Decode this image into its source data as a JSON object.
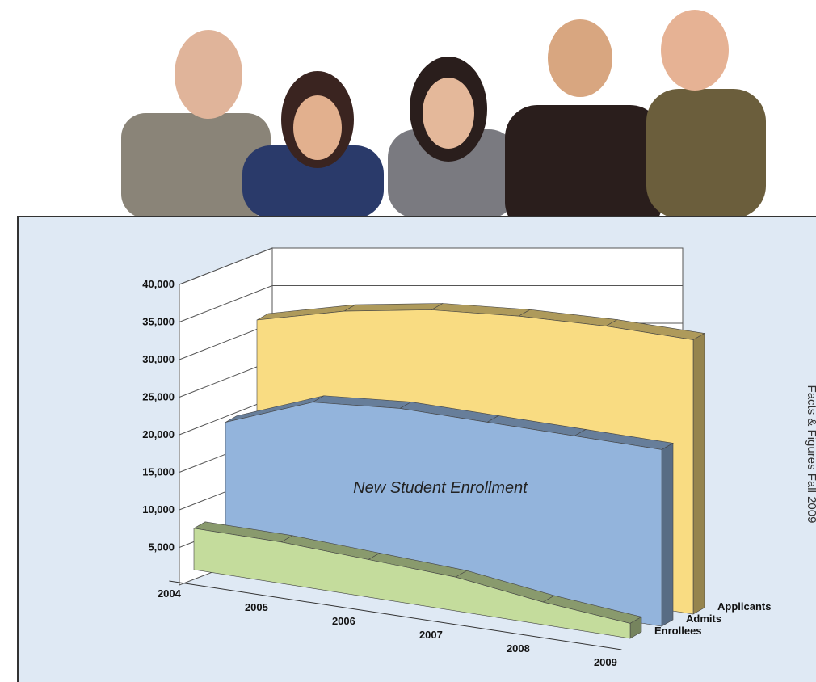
{
  "side_text": "Facts & Figures  Fall 2009",
  "chart_data": {
    "type": "area3d",
    "annotation": "New Student Enrollment",
    "categories": [
      "2004",
      "2005",
      "2006",
      "2007",
      "2008",
      "2009"
    ],
    "series": [
      {
        "name": "Applicants",
        "color": "#f9dc82",
        "values": [
          30000,
          33000,
          35000,
          36000,
          36500,
          36500
        ]
      },
      {
        "name": "Admits",
        "color": "#93b4dc",
        "values": [
          18000,
          22500,
          23500,
          23500,
          23500,
          23500
        ]
      },
      {
        "name": "Enrollees",
        "color": "#c4dc9c",
        "values": [
          5500,
          5500,
          5000,
          4500,
          3000,
          2000
        ]
      }
    ],
    "ylim": [
      0,
      40000
    ],
    "yticks": [
      {
        "value": 5000,
        "label": "5,000"
      },
      {
        "value": 10000,
        "label": "10,000"
      },
      {
        "value": 15000,
        "label": "15,000"
      },
      {
        "value": 20000,
        "label": "20,000"
      },
      {
        "value": 25000,
        "label": "25,000"
      },
      {
        "value": 30000,
        "label": "30,000"
      },
      {
        "value": 35000,
        "label": "35,000"
      },
      {
        "value": 40000,
        "label": "40,000"
      }
    ],
    "grid": true
  }
}
